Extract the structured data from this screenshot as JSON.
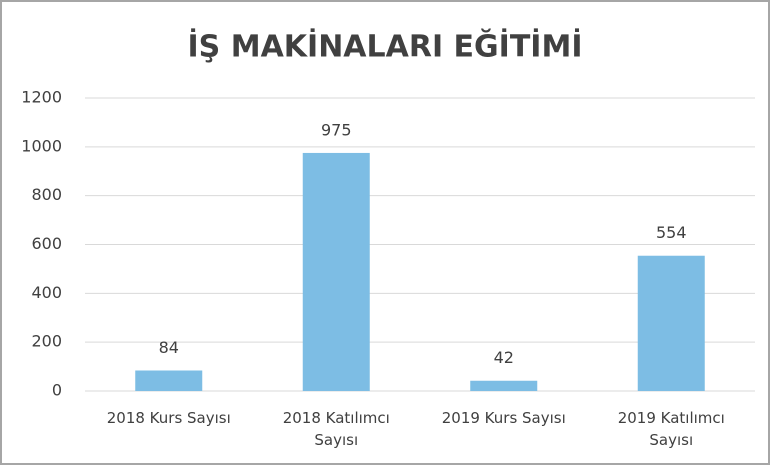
{
  "chart_data": {
    "type": "bar",
    "title": "İŞ MAKİNALARI EĞİTİMİ",
    "categories": [
      "2018 Kurs Sayısı",
      "2018 Katılımcı Sayısı",
      "2019 Kurs Sayısı",
      "2019 Katılımcı Sayısı"
    ],
    "values": [
      84,
      975,
      42,
      554
    ],
    "color": "#7dbde4",
    "ylim": [
      0,
      1200
    ],
    "yticks": [
      0,
      200,
      400,
      600,
      800,
      1000,
      1200
    ],
    "grid": true
  }
}
